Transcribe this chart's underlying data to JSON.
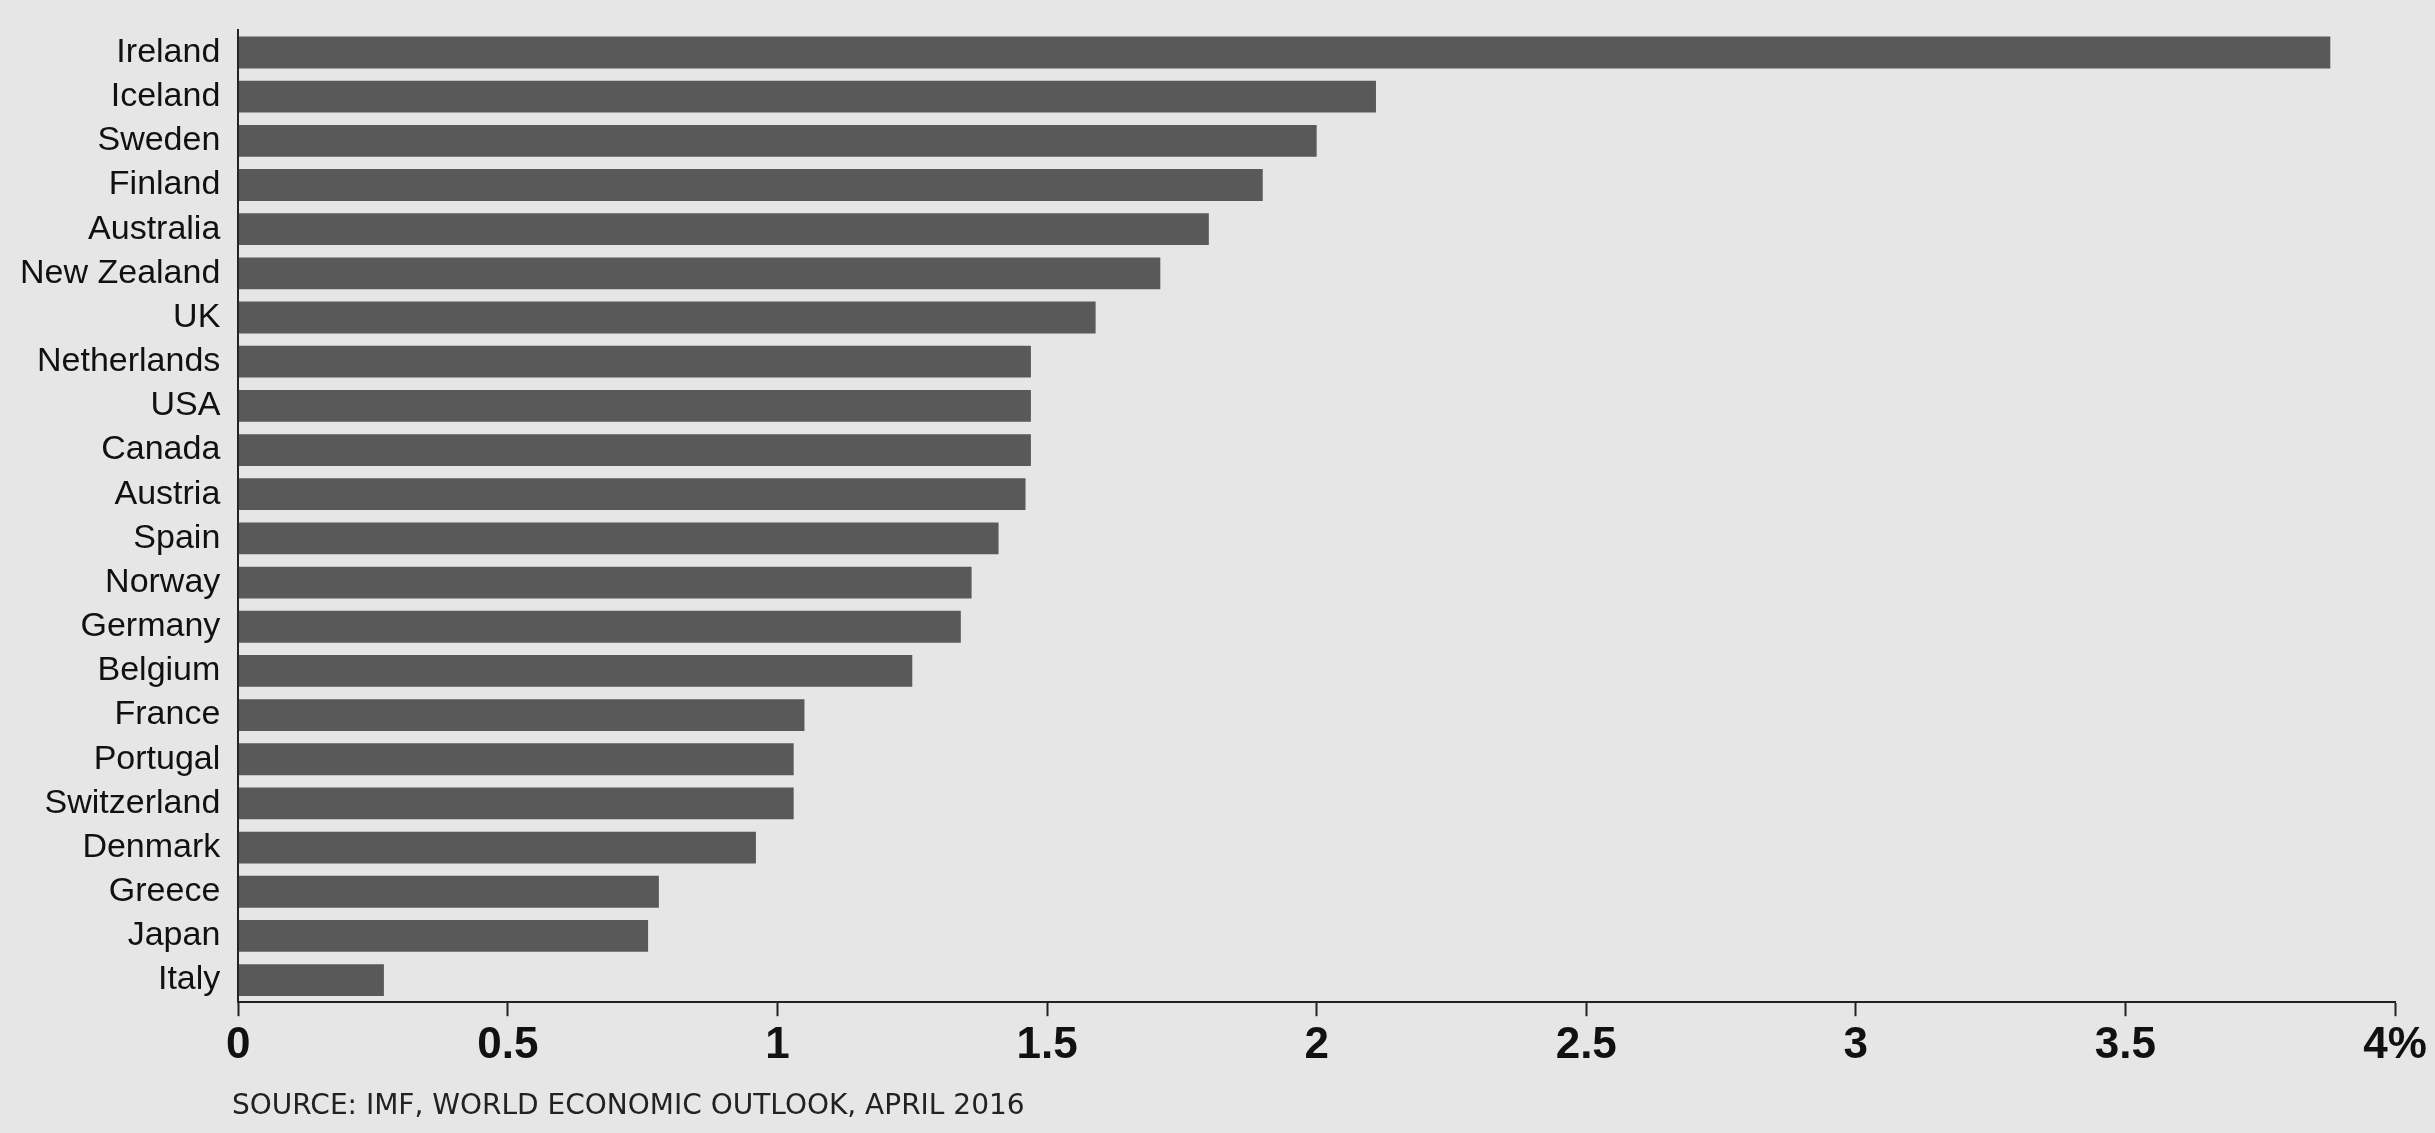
{
  "chart_data": {
    "type": "bar",
    "orientation": "horizontal",
    "categories": [
      "Ireland",
      "Iceland",
      "Sweden",
      "Finland",
      "Australia",
      "New Zealand",
      "UK",
      "Netherlands",
      "USA",
      "Canada",
      "Austria",
      "Spain",
      "Norway",
      "Germany",
      "Belgium",
      "France",
      "Portugal",
      "Switzerland",
      "Denmark",
      "Greece",
      "Japan",
      "Italy"
    ],
    "values": [
      3.88,
      2.11,
      2.0,
      1.9,
      1.8,
      1.71,
      1.59,
      1.47,
      1.47,
      1.47,
      1.46,
      1.41,
      1.36,
      1.34,
      1.25,
      1.05,
      1.03,
      1.03,
      0.96,
      0.78,
      0.76,
      0.27
    ],
    "color": "#595959",
    "xlim": [
      0,
      4
    ],
    "xticks": [
      0,
      0.5,
      1,
      1.5,
      2,
      2.5,
      3,
      3.5,
      {
        "value": 4,
        "label": "4%"
      }
    ],
    "annotations": [
      "SOURCE: IMF, WORLD ECONOMIC OUTLOOK, APRIL 2016"
    ]
  }
}
